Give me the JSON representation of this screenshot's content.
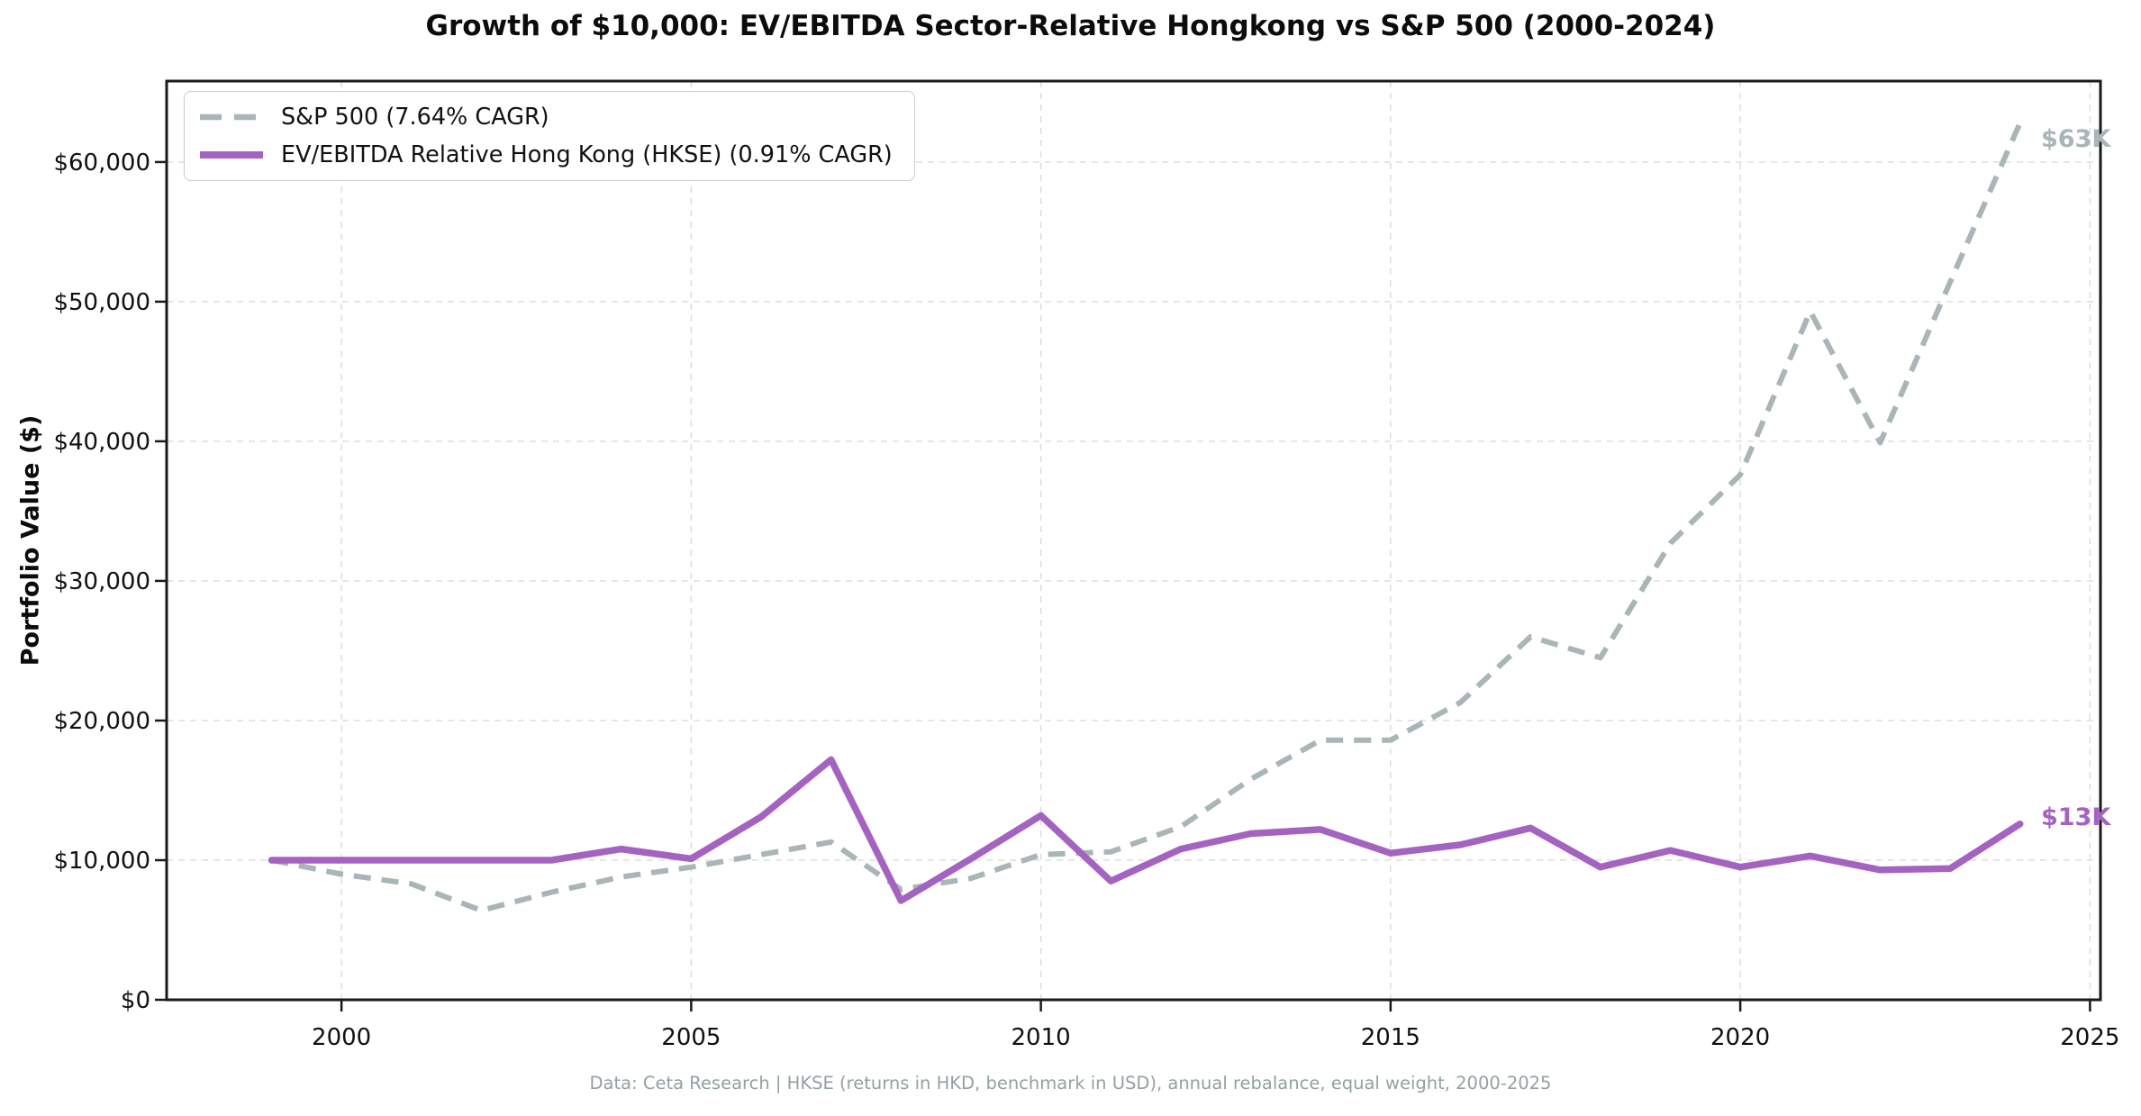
{
  "title": "Growth of $10,000: EV/EBITDA Sector-Relative Hongkong vs S&P 500 (2000-2024)",
  "y_axis_title": "Portfolio Value ($)",
  "footer": "Data: Ceta Research | HKSE (returns in HKD, benchmark in USD), annual rebalance, equal weight, 2000-2025",
  "legend": [
    {
      "label": "S&P 500 (7.64% CAGR)",
      "color": "#a9b5b6",
      "style": "dashed"
    },
    {
      "label": "EV/EBITDA Relative Hong Kong (HKSE) (0.91% CAGR)",
      "color": "#a563c1",
      "style": "solid"
    }
  ],
  "annotations": [
    {
      "text": "$63K",
      "color": "#a9b5b6",
      "year": 2024.3,
      "value": 61600
    },
    {
      "text": "$13K",
      "color": "#a563c1",
      "year": 2024.3,
      "value": 13000
    }
  ],
  "colors": {
    "sp500_line": "#a9b5b6",
    "hk_line": "#a563c1",
    "grid": "#dbdbdb",
    "spine": "#1a1a1a",
    "footer_text": "#93a1a3"
  },
  "chart_data": {
    "type": "line",
    "title": "Growth of $10,000: EV/EBITDA Sector-Relative Hongkong vs S&P 500 (2000-2024)",
    "xlabel": "",
    "ylabel": "Portfolio Value ($)",
    "grid": true,
    "legend_position": "upper left",
    "xlim": [
      1997.5,
      2025.15
    ],
    "ylim": [
      0,
      65800
    ],
    "x_ticks": [
      2000,
      2005,
      2010,
      2015,
      2020,
      2025
    ],
    "y_ticks": [
      0,
      10000,
      20000,
      30000,
      40000,
      50000,
      60000
    ],
    "y_tick_labels": [
      "$0",
      "$10,000",
      "$20,000",
      "$30,000",
      "$40,000",
      "$50,000",
      "$60,000"
    ],
    "x": [
      1999,
      2000,
      2001,
      2002,
      2003,
      2004,
      2005,
      2006,
      2007,
      2008,
      2009,
      2010,
      2011,
      2012,
      2013,
      2014,
      2015,
      2016,
      2017,
      2018,
      2019,
      2020,
      2021,
      2022,
      2023,
      2024
    ],
    "series": [
      {
        "name": "S&P 500 (7.64% CAGR)",
        "color": "#a9b5b6",
        "dash": true,
        "final_label": "$63K",
        "values": [
          10000,
          9000,
          8300,
          6400,
          7700,
          8800,
          9500,
          10400,
          11300,
          7900,
          8700,
          10400,
          10600,
          12400,
          15800,
          18600,
          18600,
          21300,
          26000,
          24500,
          32700,
          37600,
          49300,
          39900,
          51400,
          62800
        ]
      },
      {
        "name": "EV/EBITDA Relative Hong Kong (HKSE) (0.91% CAGR)",
        "color": "#a563c1",
        "dash": false,
        "final_label": "$13K",
        "values": [
          10000,
          10000,
          10000,
          10000,
          10000,
          10800,
          10100,
          13100,
          17200,
          7100,
          10100,
          13200,
          8500,
          10800,
          11900,
          12200,
          10500,
          11100,
          12300,
          9500,
          10700,
          9500,
          10300,
          9300,
          9400,
          12600
        ]
      }
    ]
  }
}
